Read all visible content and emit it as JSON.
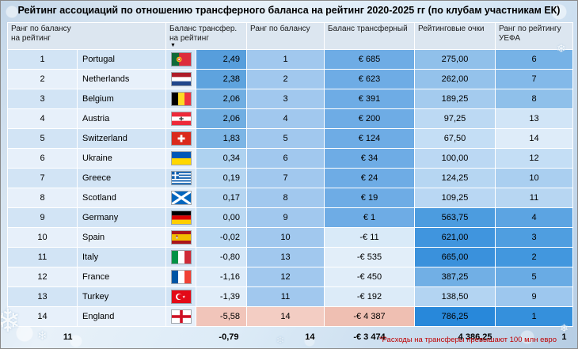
{
  "title": "Рейтинг ассоциаций по отношению трансферного баланса на рейтинг 2020-2025 гг (по клубам участникам ЕК)",
  "headers": {
    "rank_ratio_line1": "Ранг по балансу",
    "rank_ratio_line2": "на рейтинг",
    "ratio_line1": "Баланс трансфер.",
    "ratio_line2": "на рейтинг",
    "sort_icon": "▼",
    "rank_balance": "Ранг по балансу",
    "balance": "Баланс трансферный",
    "points": "Рейтинговые очки",
    "rank_uefa_line1": "Ранг по рейтингу",
    "rank_uefa_line2": "УЕФА"
  },
  "rows": [
    {
      "rank": "1",
      "country": "Portugal",
      "flag": "portugal",
      "ratio": "2,49",
      "rank_balance": "1",
      "balance": "€ 685",
      "points": "275,00",
      "rank_uefa": "6",
      "colors": {
        "ratio": "#579edc",
        "rank_balance": "#a1c8ee",
        "balance": "#6eace5",
        "points": "#90c0ea",
        "rank_uefa": "#76b2e6"
      }
    },
    {
      "rank": "2",
      "country": "Netherlands",
      "flag": "netherlands",
      "ratio": "2,38",
      "rank_balance": "2",
      "balance": "€ 623",
      "points": "262,00",
      "rank_uefa": "7",
      "colors": {
        "ratio": "#5ea3de",
        "rank_balance": "#a1c8ee",
        "balance": "#6eace5",
        "points": "#94c2eb",
        "rank_uefa": "#83b9e9"
      }
    },
    {
      "rank": "3",
      "country": "Belgium",
      "flag": "belgium",
      "ratio": "2,06",
      "rank_balance": "3",
      "balance": "€ 391",
      "points": "189,25",
      "rank_uefa": "8",
      "colors": {
        "ratio": "#70aee2",
        "rank_balance": "#a1c8ee",
        "balance": "#6eace5",
        "points": "#a4cbee",
        "rank_uefa": "#8fc0ea"
      }
    },
    {
      "rank": "4",
      "country": "Austria",
      "flag": "austria",
      "ratio": "2,06",
      "rank_balance": "4",
      "balance": "€ 200",
      "points": "97,25",
      "rank_uefa": "13",
      "colors": {
        "ratio": "#70aee2",
        "rank_balance": "#a1c8ee",
        "balance": "#6eace5",
        "points": "#bcd9f3",
        "rank_uefa": "#d1e5f7"
      }
    },
    {
      "rank": "5",
      "country": "Switzerland",
      "flag": "switzerland",
      "ratio": "1,83",
      "rank_balance": "5",
      "balance": "€ 124",
      "points": "67,50",
      "rank_uefa": "14",
      "colors": {
        "ratio": "#7cb5e5",
        "rank_balance": "#a1c8ee",
        "balance": "#6eace5",
        "points": "#c4def5",
        "rank_uefa": "#deecf9"
      }
    },
    {
      "rank": "6",
      "country": "Ukraine",
      "flag": "ukraine",
      "ratio": "0,34",
      "rank_balance": "6",
      "balance": "€ 34",
      "points": "100,00",
      "rank_uefa": "12",
      "colors": {
        "ratio": "#aed2f0",
        "rank_balance": "#a1c8ee",
        "balance": "#6eace5",
        "points": "#bbd8f3",
        "rank_uefa": "#c4def5"
      }
    },
    {
      "rank": "7",
      "country": "Greece",
      "flag": "greece",
      "ratio": "0,19",
      "rank_balance": "7",
      "balance": "€ 24",
      "points": "124,25",
      "rank_uefa": "10",
      "colors": {
        "ratio": "#b4d5f1",
        "rank_balance": "#a1c8ee",
        "balance": "#6eace5",
        "points": "#b6d6f2",
        "rank_uefa": "#aacff0"
      }
    },
    {
      "rank": "8",
      "country": "Scotland",
      "flag": "scotland",
      "ratio": "0,17",
      "rank_balance": "8",
      "balance": "€ 19",
      "points": "109,25",
      "rank_uefa": "11",
      "colors": {
        "ratio": "#b5d5f1",
        "rank_balance": "#a1c8ee",
        "balance": "#6eace5",
        "points": "#b9d7f3",
        "rank_uefa": "#b7d6f2"
      }
    },
    {
      "rank": "9",
      "country": "Germany",
      "flag": "germany",
      "ratio": "0,00",
      "rank_balance": "9",
      "balance": "€ 1",
      "points": "563,75",
      "rank_uefa": "4",
      "colors": {
        "ratio": "#bad8f2",
        "rank_balance": "#a1c8ee",
        "balance": "#6eace5",
        "points": "#4c9cdf",
        "rank_uefa": "#5ca4e2"
      }
    },
    {
      "rank": "10",
      "country": "Spain",
      "flag": "spain",
      "ratio": "-0,02",
      "rank_balance": "10",
      "balance": "-€ 11",
      "points": "621,00",
      "rank_uefa": "3",
      "colors": {
        "ratio": "#bbd9f3",
        "rank_balance": "#a1c8ee",
        "balance": "#d9eaf8",
        "points": "#4095de",
        "rank_uefa": "#4f9ee0"
      }
    },
    {
      "rank": "11",
      "country": "Italy",
      "flag": "italy",
      "ratio": "-0,80",
      "rank_balance": "13",
      "balance": "-€ 535",
      "points": "665,00",
      "rank_uefa": "2",
      "colors": {
        "ratio": "#d3e6f7",
        "rank_balance": "#a1c8ee",
        "balance": "#e2eef9",
        "points": "#3a91dc",
        "rank_uefa": "#4297de"
      }
    },
    {
      "rank": "12",
      "country": "France",
      "flag": "france",
      "ratio": "-1,16",
      "rank_balance": "12",
      "balance": "-€ 450",
      "points": "387,25",
      "rank_uefa": "5",
      "colors": {
        "ratio": "#dcebf9",
        "rank_balance": "#a1c8ee",
        "balance": "#e0edf9",
        "points": "#71afe5",
        "rank_uefa": "#69abe4"
      }
    },
    {
      "rank": "13",
      "country": "Turkey",
      "flag": "turkey",
      "ratio": "-1,39",
      "rank_balance": "11",
      "balance": "-€ 192",
      "points": "138,50",
      "rank_uefa": "9",
      "colors": {
        "ratio": "#e0edf9",
        "rank_balance": "#a1c8ee",
        "balance": "#dcebf8",
        "points": "#b3d4f2",
        "rank_uefa": "#9dc7ee"
      }
    },
    {
      "rank": "14",
      "country": "England",
      "flag": "england",
      "ratio": "-5,58",
      "rank_balance": "14",
      "balance": "-€ 4 387",
      "points": "786,25",
      "rank_uefa": "1",
      "colors": {
        "ratio": "#f1c5ba",
        "rank_balance": "#f3cdc3",
        "balance": "#efbfb2",
        "points": "#2888da",
        "rank_uefa": "#3590dc"
      }
    }
  ],
  "totals": {
    "rank": "11",
    "ratio": "-0,79",
    "rank_balance": "14",
    "balance": "-€ 3 474",
    "points": "4 386,25",
    "rank_uefa": "1"
  },
  "footnote": "*Расходы на трансферы превышают 100 млн евро",
  "footnote_color": "#c00000",
  "decor": {
    "snowflake": "❄"
  },
  "chart_data": {
    "type": "table",
    "title": "Рейтинг ассоциаций по отношению трансферного баланса на рейтинг 2020-2025 гг (по клубам участникам ЕК)",
    "columns": [
      "Ранг по балансу на рейтинг",
      "Страна",
      "Баланс трансфер. на рейтинг",
      "Ранг по балансу",
      "Баланс трансферный",
      "Рейтинговые очки",
      "Ранг по рейтингу УЕФА"
    ],
    "rows": [
      [
        1,
        "Portugal",
        2.49,
        1,
        685,
        275.0,
        6
      ],
      [
        2,
        "Netherlands",
        2.38,
        2,
        623,
        262.0,
        7
      ],
      [
        3,
        "Belgium",
        2.06,
        3,
        391,
        189.25,
        8
      ],
      [
        4,
        "Austria",
        2.06,
        4,
        200,
        97.25,
        13
      ],
      [
        5,
        "Switzerland",
        1.83,
        5,
        124,
        67.5,
        14
      ],
      [
        6,
        "Ukraine",
        0.34,
        6,
        34,
        100.0,
        12
      ],
      [
        7,
        "Greece",
        0.19,
        7,
        24,
        124.25,
        10
      ],
      [
        8,
        "Scotland",
        0.17,
        8,
        19,
        109.25,
        11
      ],
      [
        9,
        "Germany",
        0.0,
        9,
        1,
        563.75,
        4
      ],
      [
        10,
        "Spain",
        -0.02,
        10,
        -11,
        621.0,
        3
      ],
      [
        11,
        "Italy",
        -0.8,
        13,
        -535,
        665.0,
        2
      ],
      [
        12,
        "France",
        -1.16,
        12,
        -450,
        387.25,
        5
      ],
      [
        13,
        "Turkey",
        -1.39,
        11,
        -192,
        138.5,
        9
      ],
      [
        14,
        "England",
        -5.58,
        14,
        -4387,
        786.25,
        1
      ]
    ],
    "totals_row": [
      11,
      "",
      -0.79,
      14,
      -3474,
      4386.25,
      1
    ],
    "sorted_by": "Баланс трансфер. на рейтинг (по убыванию)",
    "conditional_formatting": "синяя цветовая шкала для положительных значений, розовая для крайних отрицательных"
  }
}
